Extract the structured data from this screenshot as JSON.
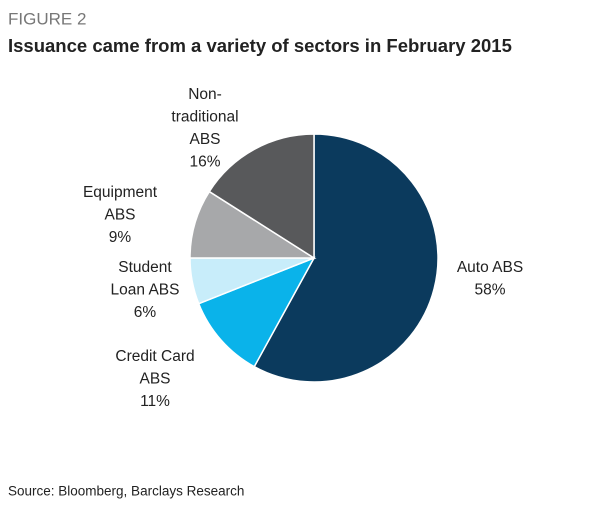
{
  "chart_data": {
    "type": "pie",
    "figure_label": "FIGURE 2",
    "title": "Issuance came from a variety of sectors in February 2015",
    "categories": [
      [
        "Auto ABS"
      ],
      [
        "Credit Card",
        "ABS"
      ],
      [
        "Student",
        "Loan ABS"
      ],
      [
        "Equipment",
        "ABS"
      ],
      [
        "Non-",
        "traditional",
        "ABS"
      ]
    ],
    "values": [
      58,
      11,
      6,
      9,
      16
    ],
    "value_labels": [
      "58%",
      "11%",
      "6%",
      "9%",
      "16%"
    ],
    "colors": [
      "#0b3a5d",
      "#0ab3ea",
      "#c8edfa",
      "#a7a8aa",
      "#58595b"
    ],
    "source": "Source: Bloomberg, Barclays Research"
  }
}
